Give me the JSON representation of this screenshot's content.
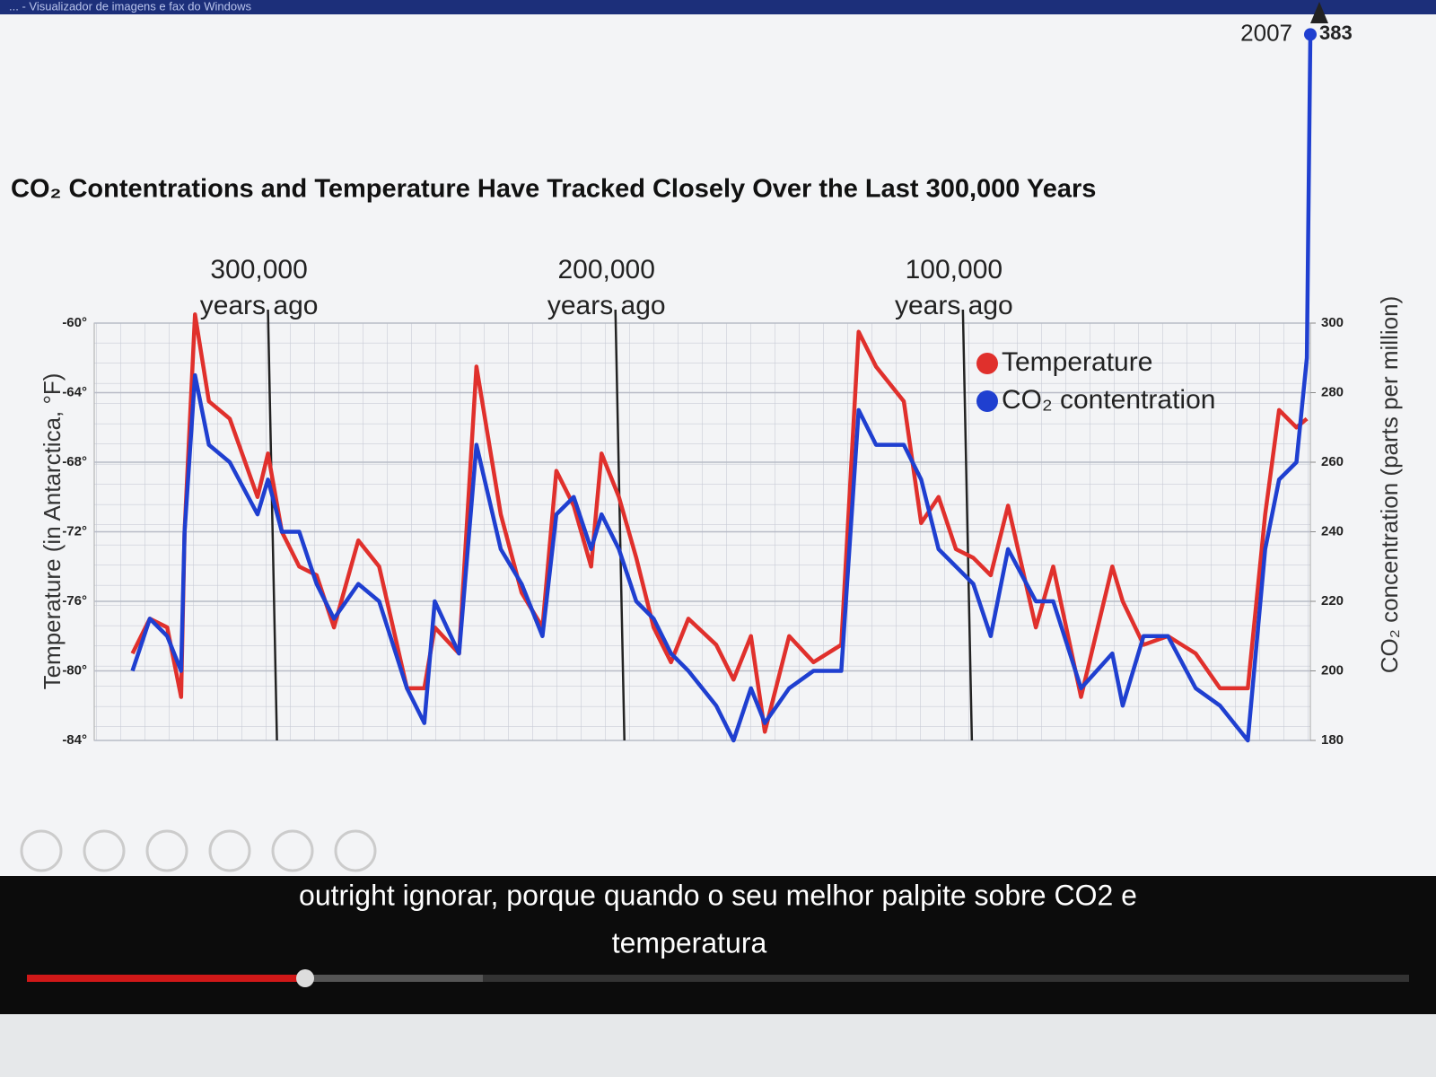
{
  "window_title": "... - Visualizador de imagens e fax do Windows",
  "chart_data": {
    "type": "line",
    "title": "CO₂ Contentrations and Temperature Have Tracked Closely Over the Last 300,000 Years",
    "ylabel": "Temperature (in Antarctica, °F)",
    "y2label": "CO₂ concentration (parts per million)",
    "xlim": [
      350000,
      0
    ],
    "ylim": [
      -84,
      -60
    ],
    "yticks": [
      {
        "value": -60,
        "label": "-60°"
      },
      {
        "value": -64,
        "label": "-64°"
      },
      {
        "value": -68,
        "label": "-68°"
      },
      {
        "value": -72,
        "label": "-72°"
      },
      {
        "value": -76,
        "label": "-76°"
      },
      {
        "value": -80,
        "label": "-80°"
      },
      {
        "value": -84,
        "label": "-84°"
      }
    ],
    "y2lim": [
      180,
      300
    ],
    "y2ticks": [
      180,
      200,
      220,
      240,
      260,
      280,
      300
    ],
    "grid": true,
    "legend": "upper right",
    "annotations": [
      {
        "x": 300000,
        "lines": [
          "300,000",
          "years ago"
        ]
      },
      {
        "x": 200000,
        "lines": [
          "200,000",
          "years ago"
        ]
      },
      {
        "x": 100000,
        "lines": [
          "100,000",
          "years ago"
        ]
      }
    ],
    "end_label": "2007",
    "x": [
      339000,
      334000,
      329000,
      325000,
      324000,
      321000,
      317000,
      311000,
      303000,
      300000,
      296000,
      291000,
      286000,
      281000,
      274000,
      268000,
      260000,
      255000,
      252000,
      245000,
      240000,
      233000,
      227000,
      221000,
      217000,
      212000,
      207000,
      204000,
      199000,
      194000,
      189000,
      184000,
      179000,
      171000,
      166000,
      161000,
      157000,
      150000,
      143000,
      135000,
      130000,
      125000,
      117000,
      112000,
      107000,
      102000,
      97000,
      92000,
      87000,
      79000,
      74000,
      66000,
      57000,
      54000,
      48000,
      41000,
      33000,
      26000,
      18000,
      13000,
      9000,
      4000,
      1000,
      0
    ],
    "series": [
      {
        "name": "Temperature",
        "color": "#e0302c",
        "axis": "y",
        "values": [
          -79,
          -77,
          -77.5,
          -81.5,
          -72,
          -59.5,
          -64.5,
          -65.5,
          -70,
          -67.5,
          -72,
          -74,
          -74.5,
          -77.5,
          -72.5,
          -74,
          -81,
          -81,
          -77.5,
          -79,
          -62.5,
          -71,
          -75.5,
          -77.5,
          -68.5,
          -70.5,
          -74,
          -67.5,
          -70,
          -73.5,
          -77.5,
          -79.5,
          -77,
          -78.5,
          -80.5,
          -78,
          -83.5,
          -78,
          -79.5,
          -78.5,
          -60.5,
          -62.5,
          -64.5,
          -71.5,
          -70,
          -73,
          -73.5,
          -74.5,
          -70.5,
          -77.5,
          -74,
          -81.5,
          -74,
          -76,
          -78.5,
          -78,
          -79,
          -81,
          -81,
          -71,
          -65,
          -66,
          -65.5,
          null
        ]
      },
      {
        "name": "CO₂ contentration",
        "color": "#1f3fd0",
        "axis": "y2",
        "values": [
          200,
          215,
          210,
          200,
          240,
          285,
          265,
          260,
          245,
          255,
          240,
          240,
          225,
          215,
          225,
          220,
          195,
          185,
          220,
          205,
          265,
          235,
          225,
          210,
          245,
          250,
          235,
          245,
          235,
          220,
          215,
          205,
          200,
          190,
          180,
          195,
          185,
          195,
          200,
          200,
          275,
          265,
          265,
          255,
          235,
          230,
          225,
          210,
          235,
          220,
          220,
          195,
          205,
          190,
          210,
          210,
          195,
          190,
          180,
          235,
          255,
          260,
          290,
          383
        ]
      }
    ]
  },
  "subtitles": [
    "outright ignorar, porque quando o seu melhor palpite sobre CO2 e",
    "temperatura"
  ]
}
